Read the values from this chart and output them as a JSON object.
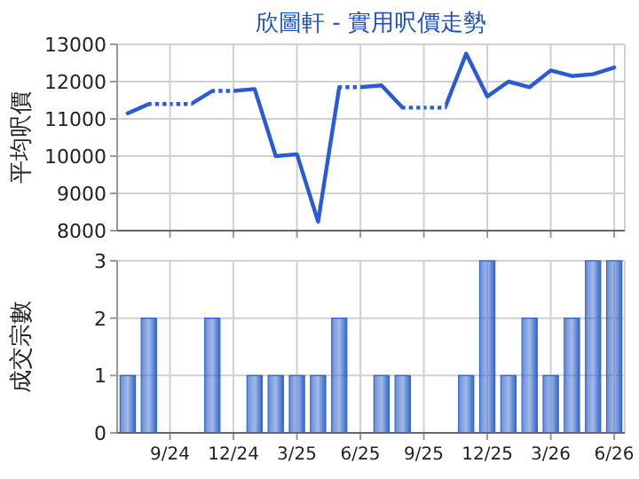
{
  "chart_data": [
    {
      "type": "line",
      "title": "欣圖軒 - 實用呎價走勢",
      "ylabel": "平均呎價",
      "categories": [
        null,
        null,
        null,
        null,
        null,
        null,
        null,
        null,
        null,
        null,
        null,
        null,
        null,
        null,
        null,
        null,
        null,
        null,
        null,
        null,
        null,
        null,
        null,
        null
      ],
      "series": [
        {
          "color": "#2a5bd7",
          "values": [
            11150,
            11400,
            11400,
            11400,
            11750,
            11750,
            11800,
            10000,
            10050,
            8240,
            11850,
            11850,
            11900,
            11300,
            11300,
            11300,
            12750,
            11600,
            12000,
            11850,
            12300,
            12150,
            12200,
            12380
          ]
        }
      ],
      "ylim": [
        8000,
        13000
      ],
      "yticks": [
        8000,
        9000,
        10000,
        11000,
        12000,
        13000
      ],
      "grid": true,
      "tick_labels": "y"
    },
    {
      "type": "bar",
      "ylabel": "成交宗數",
      "categories": [
        null,
        null,
        "9/24",
        null,
        null,
        "12/24",
        null,
        null,
        "3/25",
        null,
        null,
        "6/25",
        null,
        null,
        "9/25",
        null,
        null,
        "12/25",
        null,
        null,
        "3/26",
        null,
        null,
        "6/26"
      ],
      "values": [
        1,
        2,
        0,
        0,
        2,
        0,
        1,
        1,
        1,
        1,
        2,
        0,
        1,
        1,
        0,
        0,
        1,
        3,
        1,
        2,
        1,
        2,
        3,
        3
      ],
      "color": "#3366cc",
      "ylim": [
        0,
        3
      ],
      "yticks": [
        0,
        1,
        2,
        3
      ],
      "grid": true
    }
  ]
}
